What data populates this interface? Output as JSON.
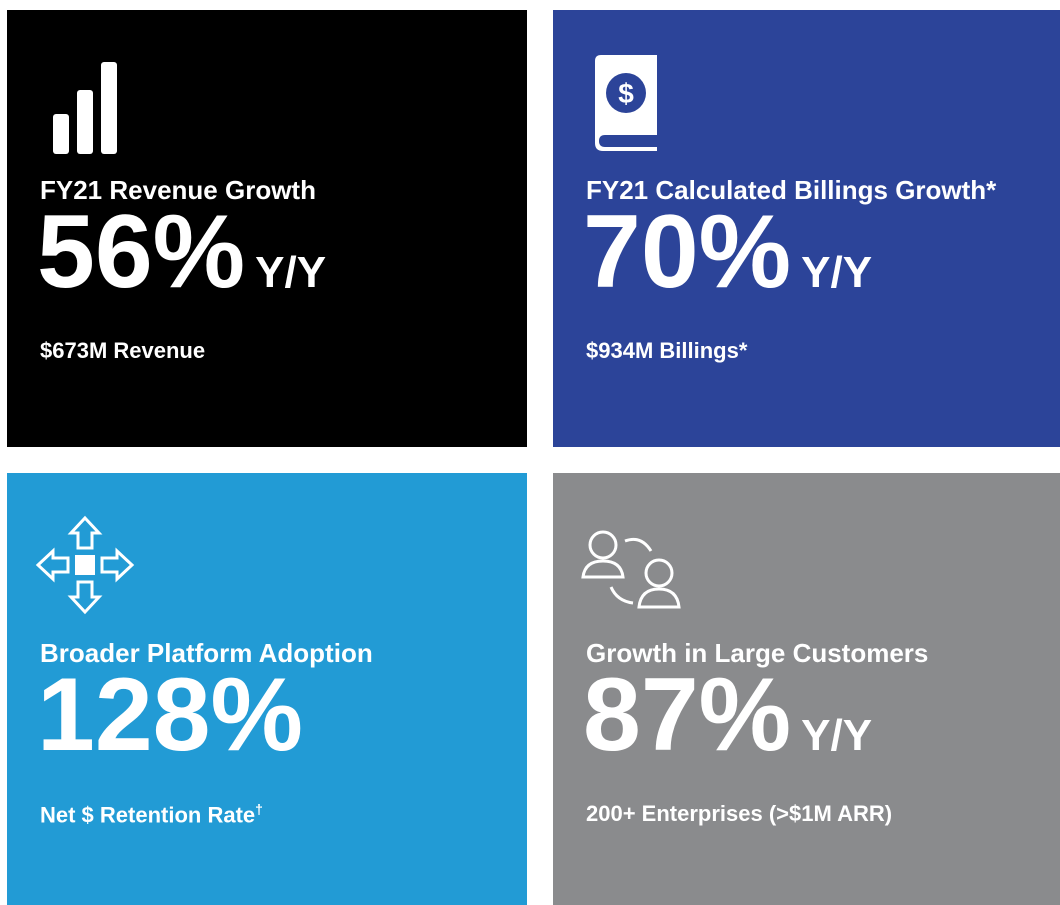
{
  "tiles": [
    {
      "title": "FY21 Revenue Growth",
      "value": "56%",
      "suffix": "Y/Y",
      "subtitle": "$673M Revenue"
    },
    {
      "title": "FY21 Calculated Billings Growth*",
      "value": "70%",
      "suffix": "Y/Y",
      "subtitle": "$934M Billings*"
    },
    {
      "title": "Broader Platform Adoption",
      "value": "128%",
      "subtitle": "Net $ Retention Rate",
      "subtitle_mark": "†"
    },
    {
      "title": "Growth in Large Customers",
      "value": "87%",
      "suffix": "Y/Y",
      "subtitle": "200+ Enterprises (>$1M ARR)"
    }
  ]
}
